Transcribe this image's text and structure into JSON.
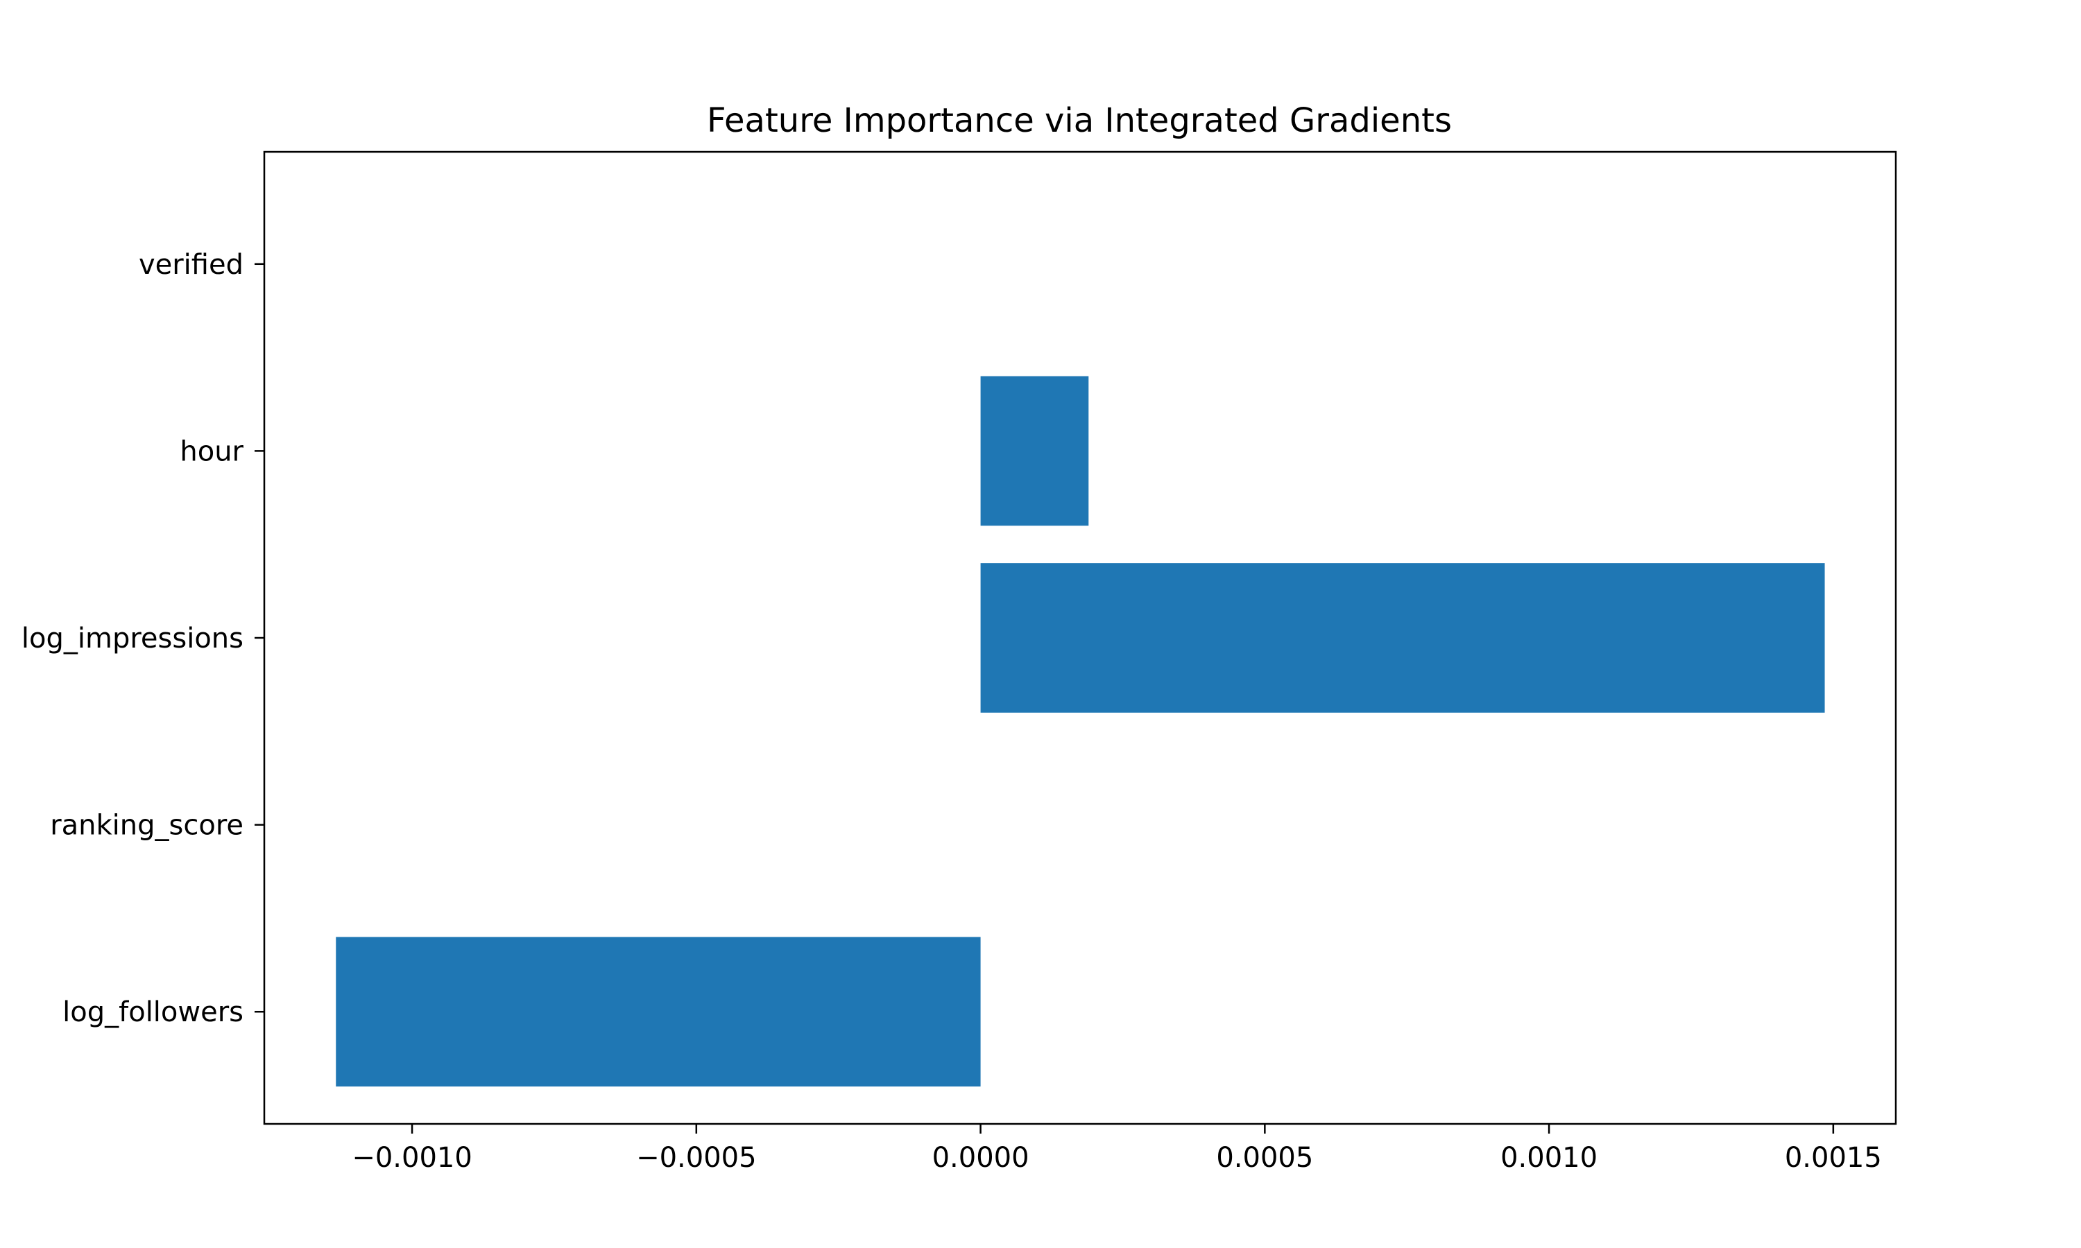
{
  "chart_data": {
    "type": "bar",
    "orientation": "horizontal",
    "title": "Feature Importance via Integrated Gradients",
    "xlabel": "",
    "ylabel": "",
    "categories": [
      "log_followers",
      "ranking_score",
      "log_impressions",
      "hour",
      "verified"
    ],
    "values": [
      -0.001134,
      0.0,
      0.001485,
      0.00019,
      0.0
    ],
    "xlim": [
      -0.00126,
      0.00161
    ],
    "xticks": [
      -0.001,
      -0.0005,
      0.0,
      0.0005,
      0.001,
      0.0015
    ],
    "xtick_labels": [
      "−0.0010",
      "−0.0005",
      "0.0000",
      "0.0005",
      "0.0010",
      "0.0015"
    ],
    "grid": false,
    "bar_color": "#1f77b4"
  }
}
